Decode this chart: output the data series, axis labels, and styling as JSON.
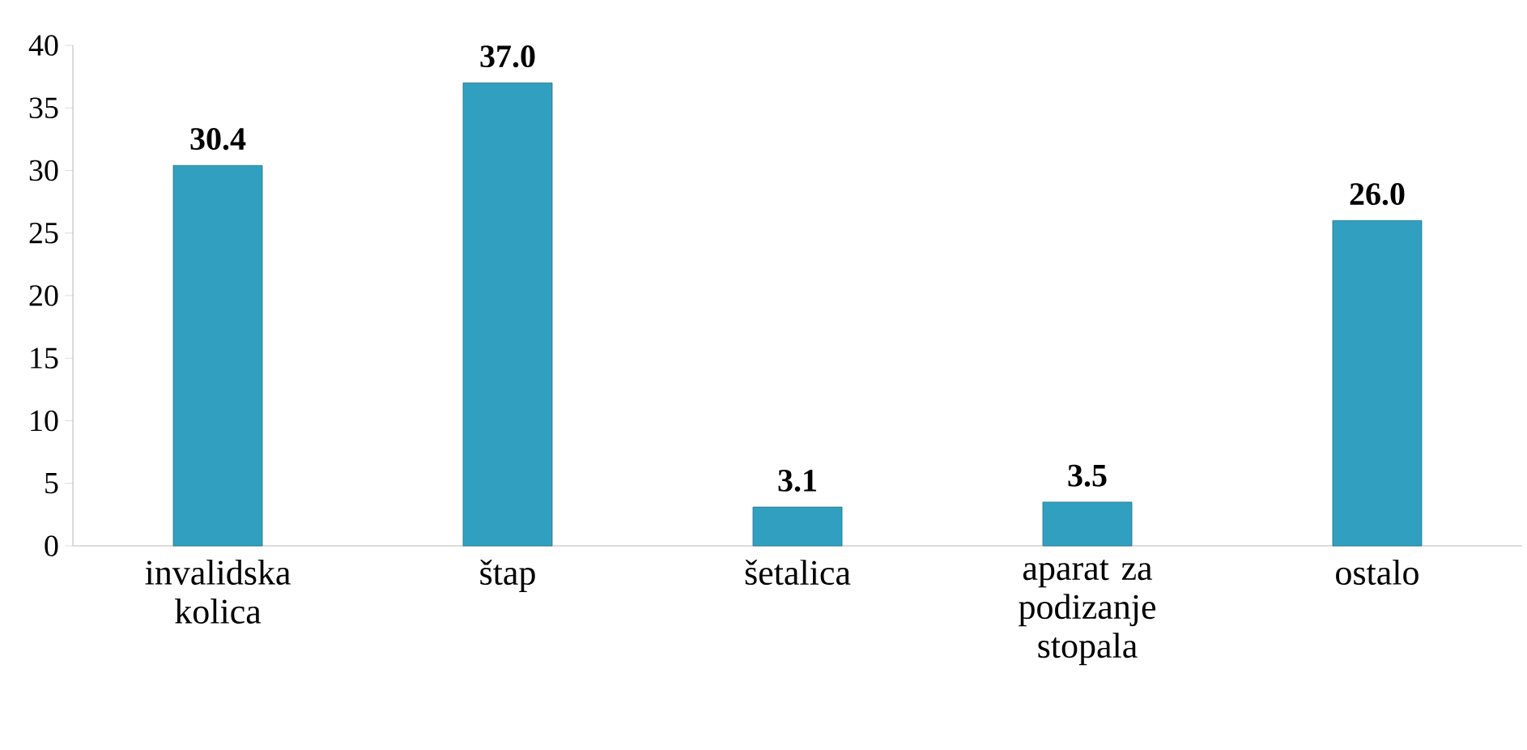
{
  "chart_data": {
    "type": "bar",
    "categories": [
      "invalidska kolica",
      "štap",
      "šetalica",
      "aparat za podizanje stopala",
      "ostalo"
    ],
    "values": [
      30.4,
      37.0,
      3.1,
      3.5,
      26.0
    ],
    "value_labels": [
      "30.4",
      "37.0",
      "3.1",
      "3.5",
      "26.0"
    ],
    "color": "#31a0c0",
    "ylim": [
      0,
      40
    ],
    "yticks": [
      0,
      5,
      10,
      15,
      20,
      25,
      30,
      35,
      40
    ]
  }
}
